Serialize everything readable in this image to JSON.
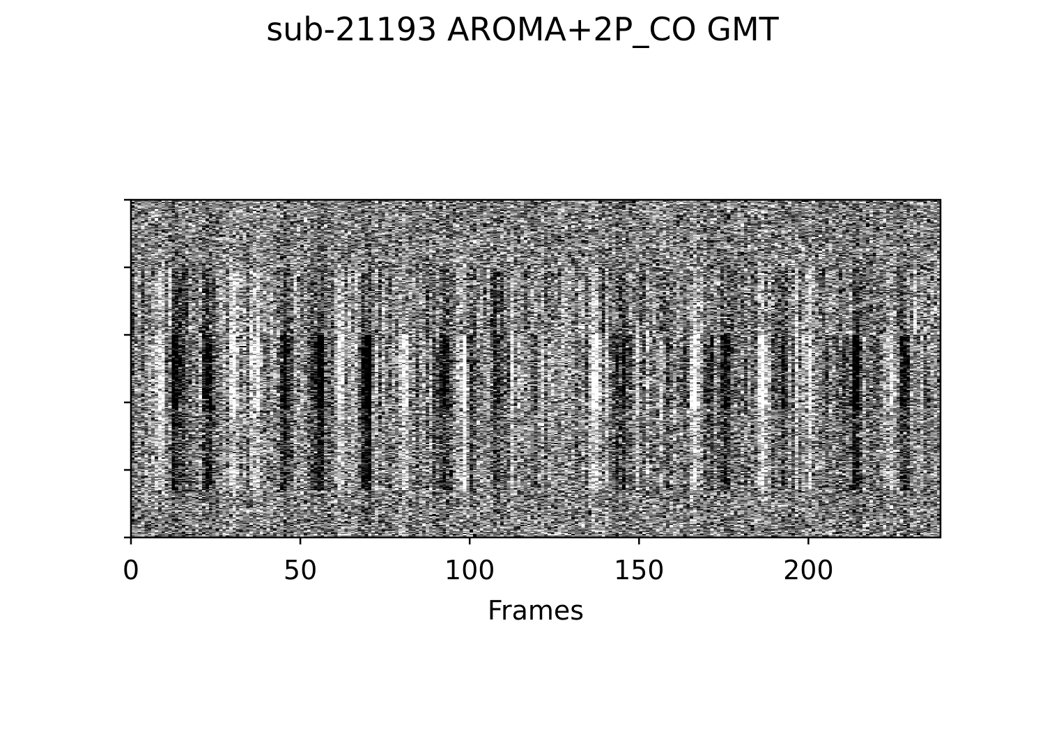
{
  "chart_data": {
    "type": "heatmap",
    "title": "sub-21193 AROMA+2P_CO GMT",
    "xlabel": "Frames",
    "ylabel": "",
    "colormap": "gray",
    "n_frames": 239,
    "n_rows": 300,
    "xlim": [
      0,
      239
    ],
    "x_ticks": [
      0,
      50,
      100,
      150,
      200
    ],
    "y_ticks_labeled": false,
    "y_tick_count": 6,
    "grid": false,
    "dark_bands_at_frames": [
      13,
      22,
      45,
      55,
      69,
      92,
      100,
      107,
      145,
      175,
      193,
      214,
      228
    ],
    "bright_bands_at_frames": [
      8,
      30,
      36,
      61,
      80,
      98,
      137,
      166,
      186,
      200,
      225
    ]
  }
}
